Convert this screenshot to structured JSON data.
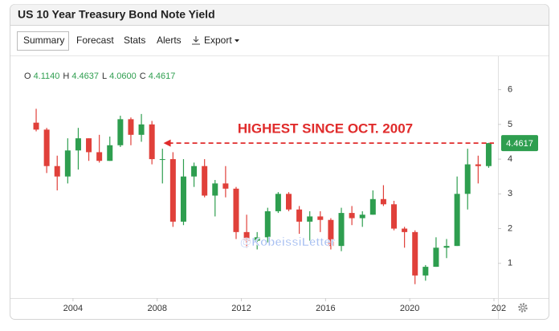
{
  "header": {
    "title": "US 10 Year Treasury Bond Note Yield",
    "tabs": [
      "Summary",
      "Forecast",
      "Stats",
      "Alerts",
      "Export"
    ]
  },
  "chart_data": {
    "type": "candlestick",
    "x": [
      2002.25,
      2002.75,
      2003.25,
      2003.75,
      2004.25,
      2004.75,
      2005.25,
      2005.75,
      2006.25,
      2006.75,
      2007.25,
      2007.75,
      2008.25,
      2008.75,
      2009.25,
      2009.75,
      2010.25,
      2010.75,
      2011.25,
      2011.75,
      2012.25,
      2012.75,
      2013.25,
      2013.75,
      2014.25,
      2014.75,
      2015.25,
      2015.75,
      2016.25,
      2016.75,
      2017.25,
      2017.75,
      2018.25,
      2018.75,
      2019.25,
      2019.75,
      2020.25,
      2020.75,
      2021.25,
      2021.75,
      2022.25,
      2022.75,
      2023.25,
      2023.75
    ],
    "open": [
      5.05,
      4.85,
      3.8,
      3.5,
      4.25,
      4.6,
      4.2,
      3.95,
      4.4,
      5.15,
      4.7,
      5.0,
      4.0,
      4.0,
      2.2,
      3.5,
      3.8,
      2.95,
      3.3,
      3.15,
      1.9,
      1.65,
      1.75,
      2.5,
      3.0,
      2.55,
      2.2,
      2.35,
      2.25,
      1.5,
      2.45,
      2.3,
      2.4,
      2.85,
      2.7,
      2.0,
      1.9,
      0.65,
      0.9,
      1.45,
      1.5,
      3.0,
      3.85,
      3.8
    ],
    "high": [
      5.45,
      4.9,
      4.1,
      4.6,
      4.9,
      4.6,
      4.7,
      4.65,
      5.25,
      5.2,
      5.3,
      5.1,
      4.3,
      4.2,
      4.0,
      3.9,
      4.0,
      3.4,
      3.8,
      3.2,
      2.4,
      1.9,
      2.6,
      3.05,
      3.05,
      2.65,
      2.5,
      2.5,
      2.3,
      2.6,
      2.65,
      2.5,
      3.1,
      3.25,
      2.8,
      2.05,
      1.95,
      0.95,
      1.75,
      1.7,
      3.5,
      4.3,
      4.1,
      4.47
    ],
    "low": [
      4.8,
      3.6,
      3.1,
      3.3,
      3.7,
      3.95,
      3.9,
      3.95,
      4.35,
      4.4,
      4.5,
      3.85,
      3.3,
      2.05,
      2.1,
      3.2,
      2.9,
      2.35,
      2.9,
      1.7,
      1.45,
      1.4,
      1.6,
      2.45,
      2.5,
      1.85,
      1.65,
      1.9,
      1.4,
      1.35,
      2.1,
      2.05,
      2.4,
      2.65,
      1.95,
      1.45,
      0.4,
      0.5,
      0.9,
      1.15,
      1.5,
      2.55,
      3.3,
      3.75
    ],
    "close": [
      4.85,
      3.8,
      3.5,
      4.25,
      4.6,
      4.2,
      3.95,
      4.4,
      5.15,
      4.7,
      5.0,
      4.0,
      4.0,
      2.2,
      3.5,
      3.8,
      2.95,
      3.3,
      3.15,
      1.9,
      1.65,
      1.75,
      2.5,
      3.0,
      2.55,
      2.2,
      2.35,
      2.25,
      1.5,
      2.45,
      2.3,
      2.4,
      2.85,
      2.7,
      2.0,
      1.9,
      0.65,
      0.9,
      1.45,
      1.5,
      3.0,
      3.85,
      3.8,
      4.4617
    ],
    "up_color": "#2e9e4f",
    "down_color": "#e0403a",
    "xlim": [
      2001.6,
      2024.0
    ],
    "xticks": [
      2004,
      2008,
      2012,
      2016,
      2020,
      {
        "value": 2024,
        "label": "202"
      }
    ],
    "ylim": [
      0,
      6.5
    ],
    "yticks": [
      1,
      2,
      3,
      4,
      5,
      6
    ],
    "grid": false,
    "legend_keys": [
      "O",
      "H",
      "L",
      "C"
    ],
    "legend_values": [
      4.114,
      4.4637,
      4.06,
      4.4617
    ],
    "legend_value_labels": [
      "4.1140",
      "4.4637",
      "4.0600",
      "4.4617"
    ],
    "last_value": 4.4617,
    "last_value_label": "4.4617",
    "annotation": {
      "text": "HIGHEST SINCE OCT. 2007",
      "x": 2008.3,
      "y": 4.4617
    },
    "watermark": "@KobeissiLetter"
  }
}
